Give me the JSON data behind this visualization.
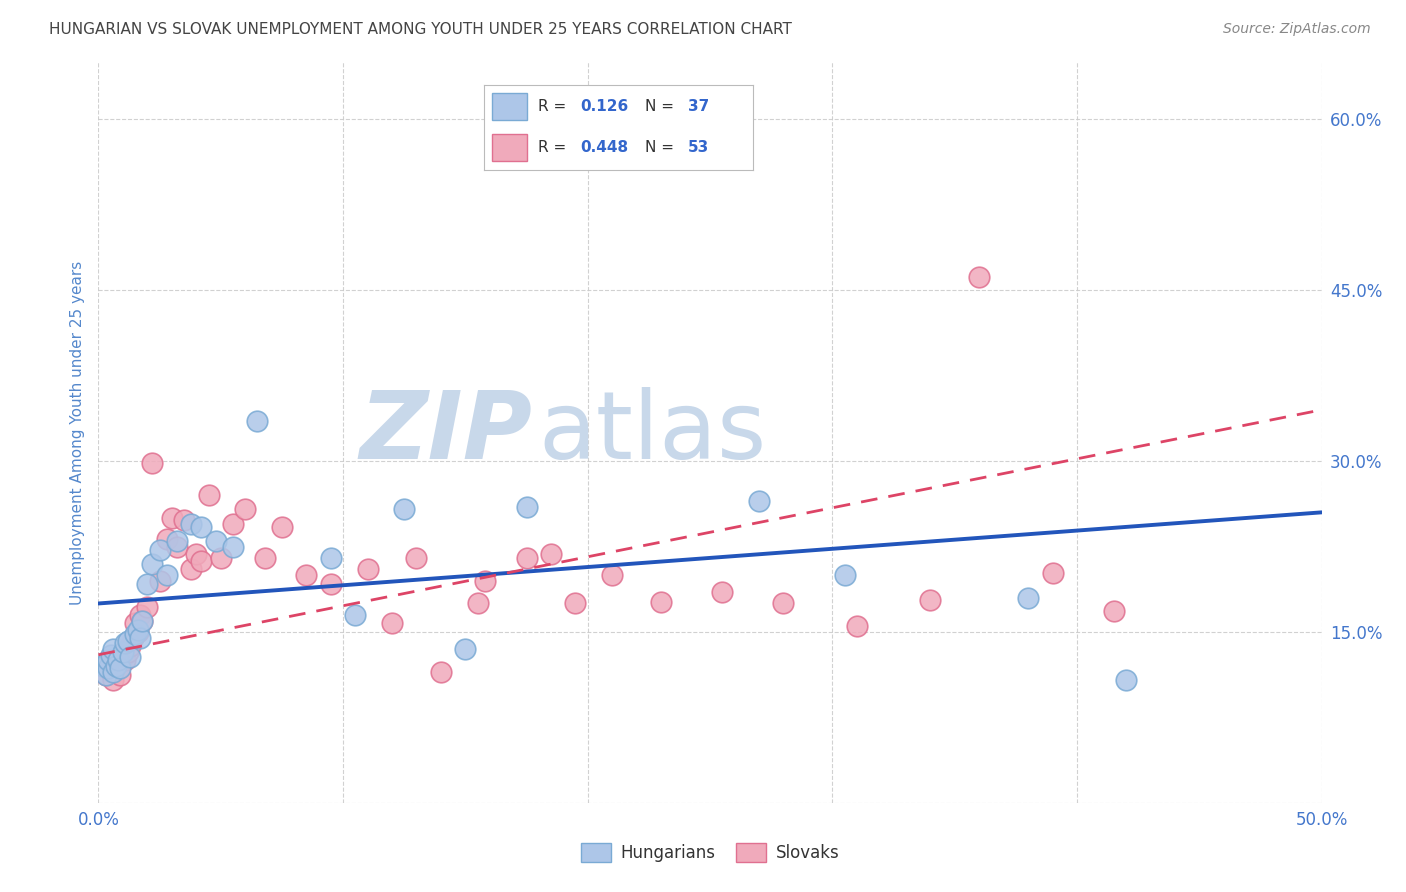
{
  "title": "HUNGARIAN VS SLOVAK UNEMPLOYMENT AMONG YOUTH UNDER 25 YEARS CORRELATION CHART",
  "source": "Source: ZipAtlas.com",
  "ylabel": "Unemployment Among Youth under 25 years",
  "xlim": [
    0.0,
    0.5
  ],
  "ylim": [
    0.0,
    0.65
  ],
  "background_color": "#ffffff",
  "grid_color": "#cccccc",
  "hungarian_color": "#adc6e8",
  "hungarian_edge_color": "#7aaad4",
  "slovak_color": "#f0aabb",
  "slovak_edge_color": "#e07090",
  "hungarian_line_color": "#2255bb",
  "slovak_line_color": "#dd4466",
  "title_color": "#444444",
  "source_color": "#888888",
  "axis_label_color": "#5588cc",
  "tick_label_color": "#4477cc",
  "r_value_color": "#3366cc",
  "n_value_color": "#3366cc",
  "watermark_zip_color": "#c8d8ea",
  "watermark_atlas_color": "#c8d8ea",
  "legend_border_color": "#bbbbbb",
  "hungarians_x": [
    0.002,
    0.003,
    0.004,
    0.004,
    0.005,
    0.006,
    0.006,
    0.007,
    0.008,
    0.009,
    0.01,
    0.011,
    0.012,
    0.013,
    0.015,
    0.016,
    0.017,
    0.018,
    0.02,
    0.022,
    0.025,
    0.028,
    0.032,
    0.038,
    0.042,
    0.048,
    0.055,
    0.065,
    0.095,
    0.105,
    0.125,
    0.15,
    0.175,
    0.27,
    0.305,
    0.38,
    0.42
  ],
  "hungarians_y": [
    0.12,
    0.112,
    0.118,
    0.125,
    0.13,
    0.115,
    0.135,
    0.12,
    0.125,
    0.118,
    0.132,
    0.14,
    0.142,
    0.128,
    0.148,
    0.152,
    0.145,
    0.16,
    0.192,
    0.21,
    0.222,
    0.2,
    0.23,
    0.245,
    0.242,
    0.23,
    0.225,
    0.335,
    0.215,
    0.165,
    0.258,
    0.135,
    0.26,
    0.265,
    0.2,
    0.18,
    0.108
  ],
  "slovaks_x": [
    0.002,
    0.003,
    0.004,
    0.005,
    0.006,
    0.007,
    0.008,
    0.009,
    0.01,
    0.011,
    0.012,
    0.013,
    0.014,
    0.015,
    0.016,
    0.017,
    0.018,
    0.02,
    0.022,
    0.025,
    0.028,
    0.03,
    0.032,
    0.035,
    0.038,
    0.04,
    0.042,
    0.045,
    0.05,
    0.055,
    0.06,
    0.068,
    0.075,
    0.085,
    0.095,
    0.11,
    0.13,
    0.155,
    0.185,
    0.21,
    0.23,
    0.255,
    0.28,
    0.31,
    0.34,
    0.36,
    0.39,
    0.415,
    0.195,
    0.175,
    0.158,
    0.14,
    0.12
  ],
  "slovaks_y": [
    0.12,
    0.112,
    0.118,
    0.115,
    0.108,
    0.122,
    0.118,
    0.112,
    0.128,
    0.125,
    0.132,
    0.138,
    0.145,
    0.158,
    0.15,
    0.165,
    0.16,
    0.172,
    0.298,
    0.195,
    0.232,
    0.25,
    0.225,
    0.248,
    0.205,
    0.218,
    0.212,
    0.27,
    0.215,
    0.245,
    0.258,
    0.215,
    0.242,
    0.2,
    0.192,
    0.205,
    0.215,
    0.175,
    0.218,
    0.2,
    0.176,
    0.185,
    0.175,
    0.155,
    0.178,
    0.462,
    0.202,
    0.168,
    0.175,
    0.215,
    0.195,
    0.115,
    0.158
  ],
  "hungarian_line_x0": 0.0,
  "hungarian_line_x1": 0.5,
  "hungarian_line_y0": 0.175,
  "hungarian_line_y1": 0.255,
  "slovak_line_x0": 0.0,
  "slovak_line_x1": 0.5,
  "slovak_line_y0": 0.13,
  "slovak_line_y1": 0.345
}
